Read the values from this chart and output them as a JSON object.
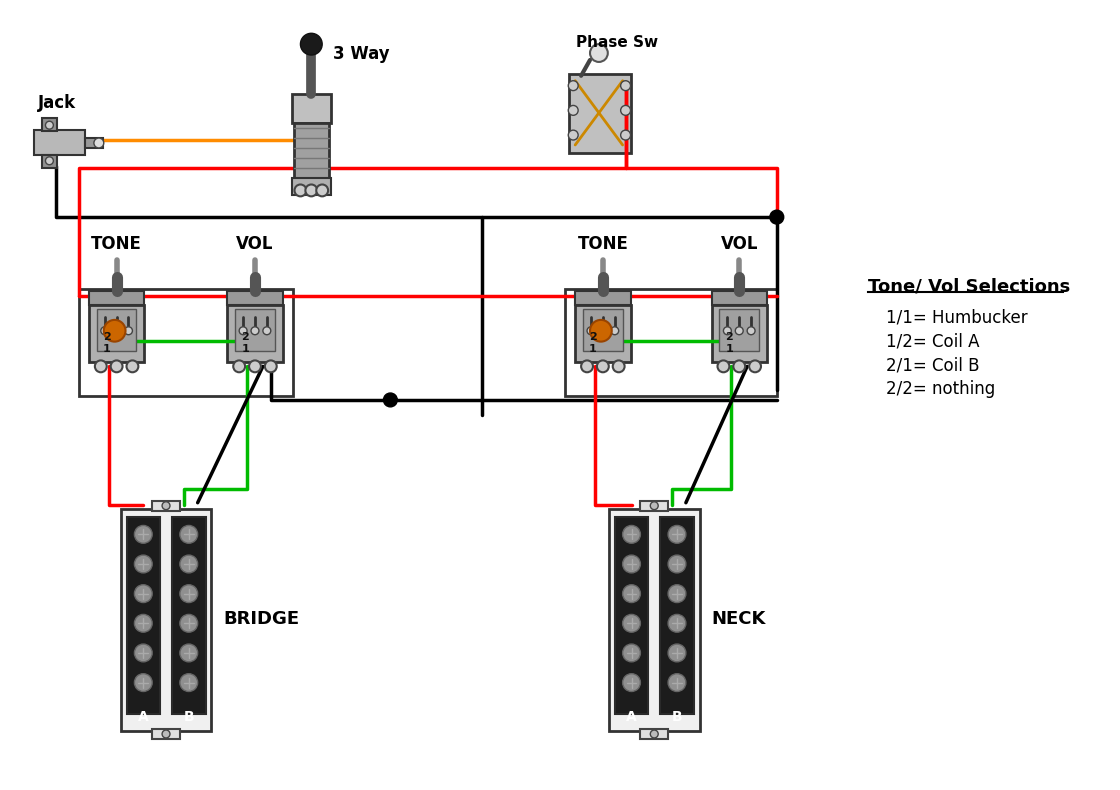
{
  "bg_color": "#ffffff",
  "labels": {
    "jack": "Jack",
    "three_way": "3 Way",
    "phase_sw": "Phase Sw",
    "tone_left": "TONE",
    "vol_left": "VOL",
    "tone_right": "TONE",
    "vol_right": "VOL",
    "bridge": "BRIDGE",
    "neck": "NECK",
    "legend_title": "Tone/ Vol Selections",
    "legend_items": [
      "1/1= Humbucker",
      "1/2= Coil A",
      "2/1= Coil B",
      "2/2= nothing"
    ]
  },
  "colors": {
    "wire_red": "#ff0000",
    "wire_black": "#000000",
    "wire_orange": "#ff8c00",
    "wire_green": "#00bb00",
    "orange_cap": "#cc6600"
  },
  "figsize": [
    11.2,
    7.9
  ],
  "dpi": 100
}
